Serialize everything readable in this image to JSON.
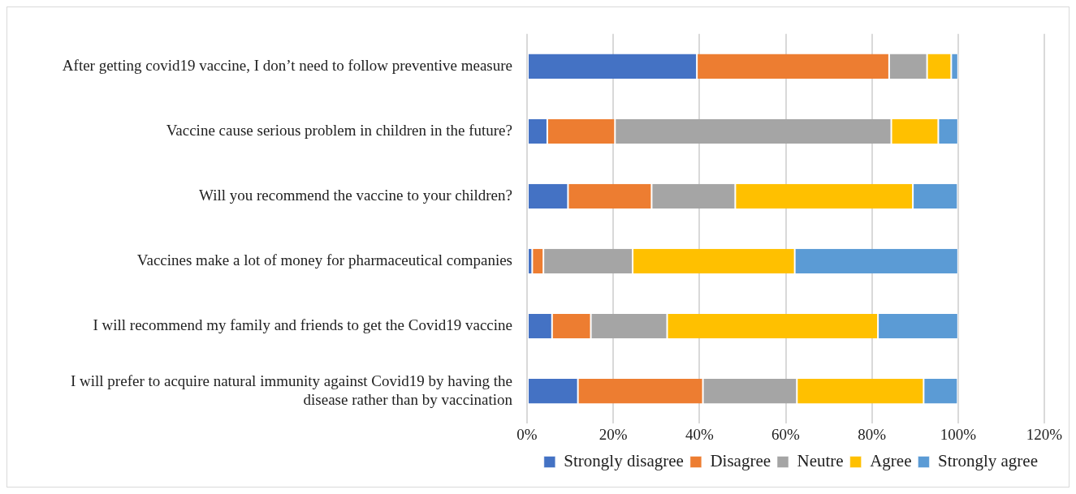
{
  "chart_data": {
    "type": "bar",
    "orientation": "horizontal",
    "stacked": true,
    "categories": [
      "After getting covid19 vaccine, I don’t need to follow preventive measure",
      "Vaccine cause serious problem in children in the future?",
      "Will you recommend the vaccine to your children?",
      "Vaccines make a lot of money for pharmaceutical companies",
      "I will recommend my family and friends to get the Covid19 vaccine",
      "I will prefer to acquire natural immunity against Covid19 by having the disease rather than by vaccination"
    ],
    "series": [
      {
        "name": "Strongly disagree",
        "color": "#4472c4",
        "values": [
          39.4,
          4.7,
          9.5,
          1.2,
          5.8,
          11.8
        ]
      },
      {
        "name": "Disagree",
        "color": "#ed7d31",
        "values": [
          44.6,
          15.7,
          19.4,
          2.6,
          9.0,
          29.0
        ]
      },
      {
        "name": "Neutre",
        "color": "#a5a5a5",
        "values": [
          8.8,
          64.1,
          19.4,
          20.7,
          17.7,
          21.8
        ]
      },
      {
        "name": "Agree",
        "color": "#ffc000",
        "values": [
          5.6,
          10.9,
          41.2,
          37.6,
          48.9,
          29.4
        ]
      },
      {
        "name": "Strongly agree",
        "color": "#5b9bd5",
        "values": [
          1.6,
          4.6,
          10.4,
          37.9,
          18.6,
          7.9
        ]
      }
    ],
    "xlim": [
      0,
      120
    ],
    "xticks": [
      {
        "value": 0,
        "label": "0%"
      },
      {
        "value": 20,
        "label": "20%"
      },
      {
        "value": 40,
        "label": "40%"
      },
      {
        "value": 60,
        "label": "60%"
      },
      {
        "value": 80,
        "label": "80%"
      },
      {
        "value": 100,
        "label": "100%"
      },
      {
        "value": 120,
        "label": "120%"
      }
    ],
    "grid": "x",
    "legend": "bottom right"
  }
}
